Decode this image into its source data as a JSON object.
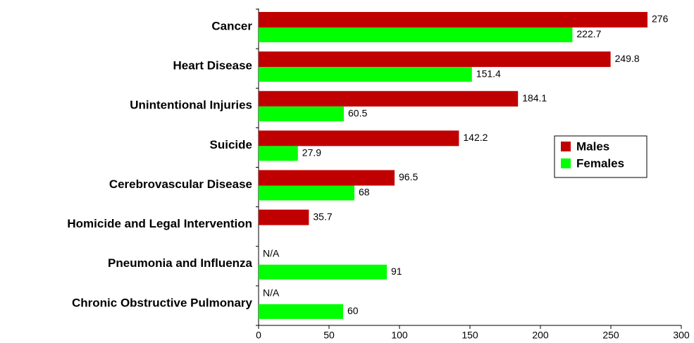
{
  "chart_data": {
    "type": "bar",
    "orientation": "horizontal",
    "categories": [
      "Cancer",
      "Heart Disease",
      "Unintentional Injuries",
      "Suicide",
      "Cerebrovascular Disease",
      "Homicide and Legal Intervention",
      "Pneumonia and Influenza",
      "Chronic Obstructive Pulmonary"
    ],
    "series": [
      {
        "name": "Males",
        "color": "#c00000",
        "values": [
          276,
          249.8,
          184.1,
          142.2,
          96.5,
          35.7,
          null,
          null
        ],
        "value_labels": [
          "276",
          "249.8",
          "184.1",
          "142.2",
          "96.5",
          "35.7",
          "N/A",
          "N/A"
        ]
      },
      {
        "name": "Females",
        "color": "#00ff00",
        "values": [
          222.7,
          151.4,
          60.5,
          27.9,
          68,
          null,
          91,
          60
        ]
      }
    ],
    "xlim": [
      0,
      300
    ],
    "xticks": [
      0,
      50,
      100,
      150,
      200,
      250,
      300
    ],
    "legend": "right"
  }
}
